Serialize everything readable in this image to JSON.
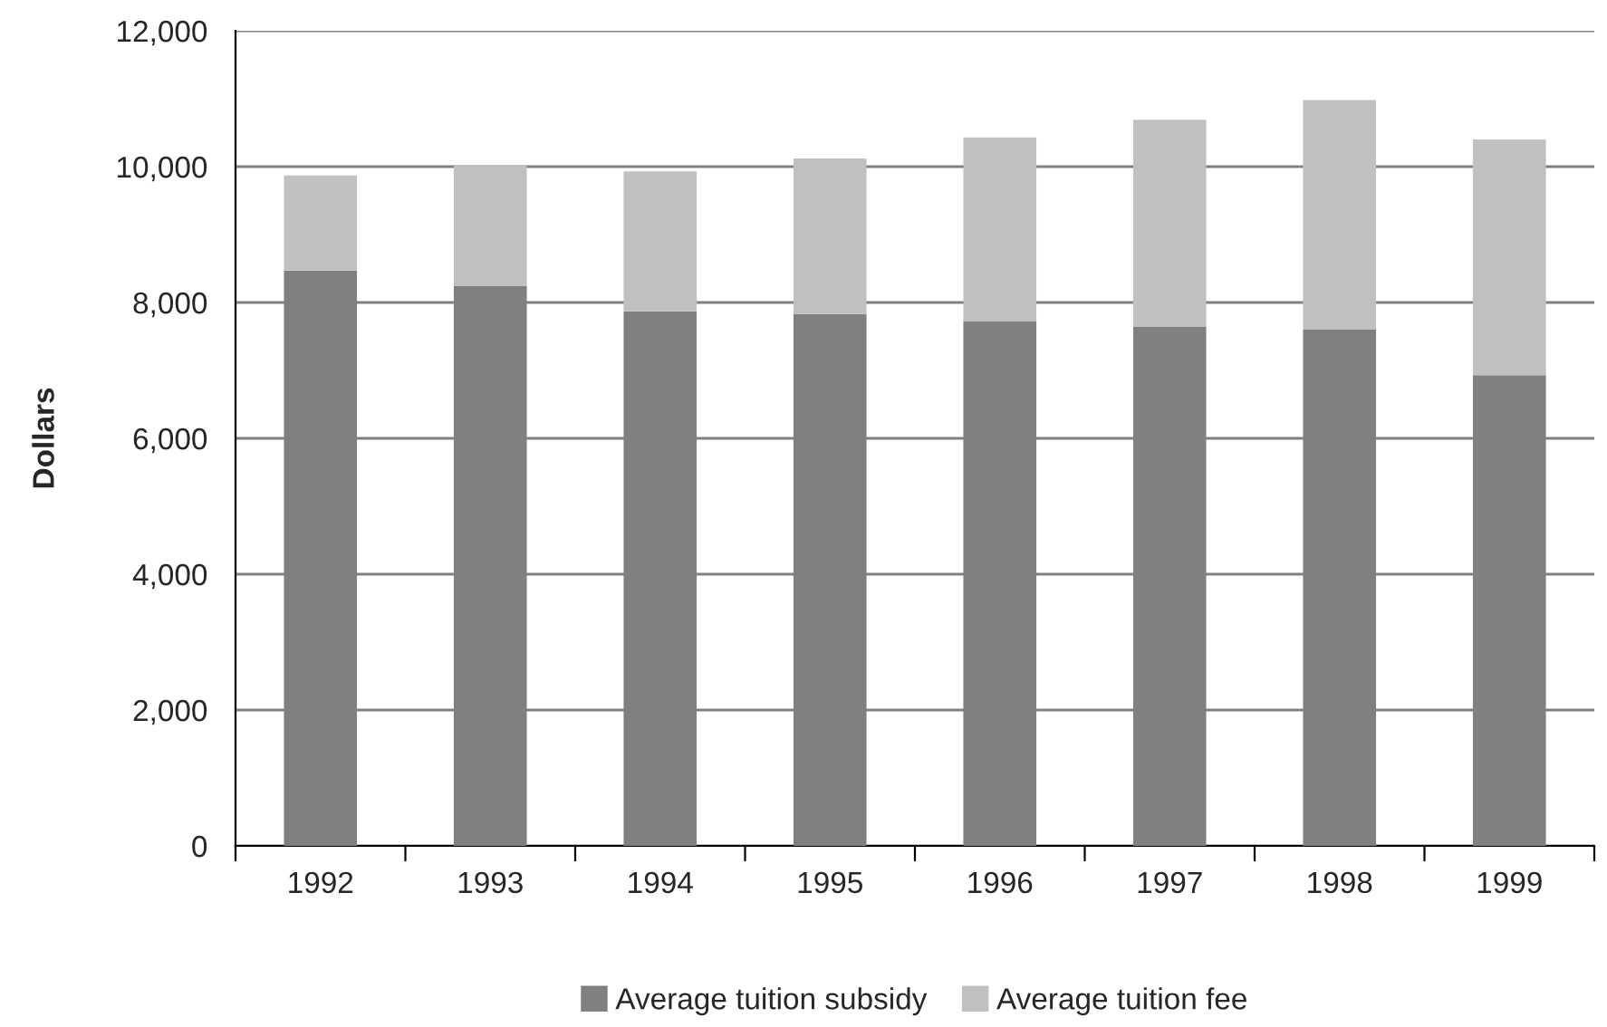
{
  "chart_data": {
    "type": "bar",
    "stacked": true,
    "ylabel": "Dollars",
    "categories": [
      "1992",
      "1993",
      "1994",
      "1995",
      "1996",
      "1997",
      "1998",
      "1999"
    ],
    "series": [
      {
        "name": "Average tuition subsidy",
        "color": "#808080",
        "values": [
          8470,
          8240,
          7870,
          7830,
          7720,
          7640,
          7600,
          6930
        ]
      },
      {
        "name": "Average tuition fee",
        "color": "#c0c0c0",
        "values": [
          1400,
          1780,
          2060,
          2290,
          2710,
          3050,
          3380,
          3470
        ]
      }
    ],
    "ylim": [
      0,
      12000
    ],
    "yticks": [
      {
        "value": 0,
        "label": "0"
      },
      {
        "value": 2000,
        "label": "2,000"
      },
      {
        "value": 4000,
        "label": "4,000"
      },
      {
        "value": 6000,
        "label": "6,000"
      },
      {
        "value": 8000,
        "label": "8,000"
      },
      {
        "value": 10000,
        "label": "10,000"
      },
      {
        "value": 12000,
        "label": "12,000"
      }
    ],
    "grid": "y",
    "legend": "bottom"
  }
}
